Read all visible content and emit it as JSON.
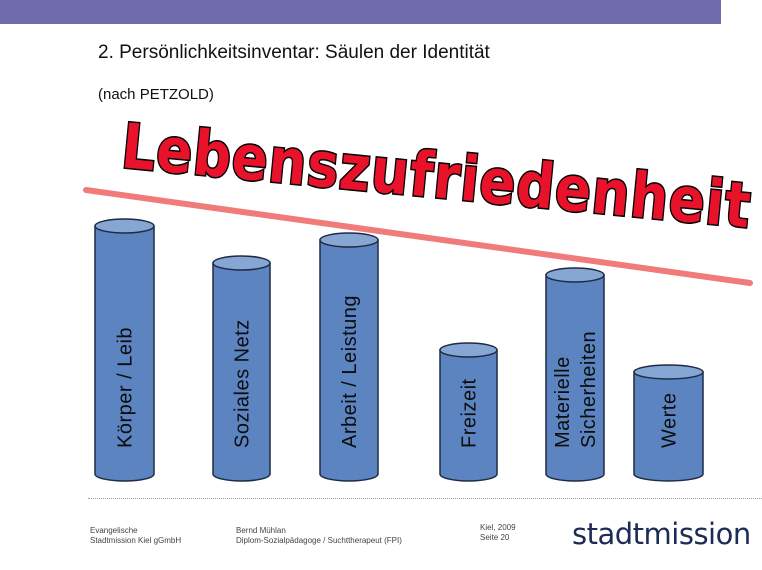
{
  "header": {
    "title": "2. Persönlichkeitsinventar: Säulen der Identität",
    "subtitle": "(nach PETZOLD)"
  },
  "banner": {
    "text": "Lebenszufriedenheit",
    "color": "#e8122a"
  },
  "pillars": [
    {
      "label_lines": [
        "Körper / Leib"
      ]
    },
    {
      "label_lines": [
        "Soziales Netz"
      ]
    },
    {
      "label_lines": [
        "Arbeit / Leistung"
      ]
    },
    {
      "label_lines": [
        "Freizeit"
      ]
    },
    {
      "label_lines": [
        "Materielle",
        "Sicherheiten"
      ]
    },
    {
      "label_lines": [
        "Werte"
      ]
    }
  ],
  "colors": {
    "header_bar": "#6f6aa9",
    "pillar_fill": "#5b84c1",
    "pillar_top": "#86a6d4",
    "pillar_edge": "#1f2a44",
    "trend_line": "#f07b7b"
  },
  "footer": {
    "org_line1": "Evangelische",
    "org_line2": "Stadtmission Kiel gGmbH",
    "author_line1": "Bernd Mühlan",
    "author_line2": "Diplom-Sozialpädagoge / Suchttherapeut (FPI)",
    "place_date": "Kiel, 2009",
    "page": "Seite 20",
    "logo_text": "stadtmission"
  }
}
